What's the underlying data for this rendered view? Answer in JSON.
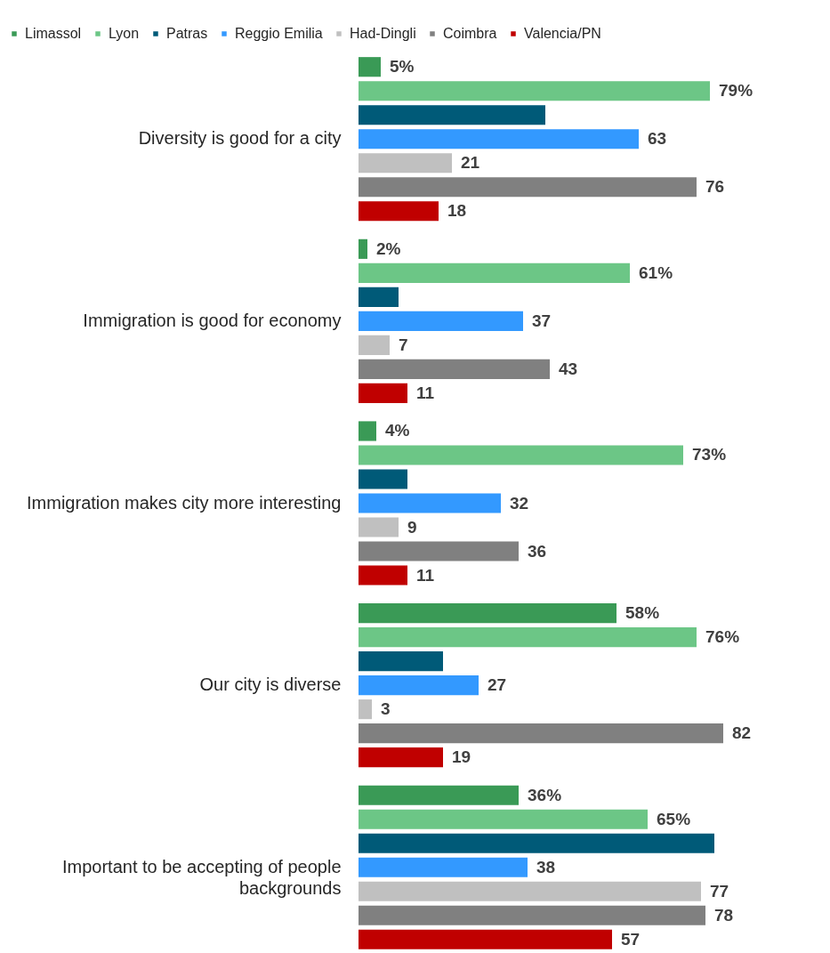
{
  "chart_data": {
    "type": "bar",
    "orientation": "horizontal",
    "legend": "top",
    "tick_labels": "y",
    "categories": [
      "Diversity is good for a city",
      "Immigration is good for economy",
      "Immigration makes city more interesting",
      "Our city is diverse",
      "Important to be accepting of people backgrounds"
    ],
    "series": [
      {
        "name": "Limassol",
        "color": "#3a9a56",
        "values": [
          5,
          2,
          4,
          58,
          36
        ],
        "value_labels": [
          "5%",
          "2%",
          "4%",
          "58%",
          "36%"
        ]
      },
      {
        "name": "Lyon",
        "color": "#6cc686",
        "values": [
          79,
          61,
          73,
          76,
          65
        ],
        "value_labels": [
          "79%",
          "61%",
          "73%",
          "76%",
          "65%"
        ]
      },
      {
        "name": "Patras",
        "color": "#005a78",
        "values": [
          42,
          9,
          11,
          19,
          80
        ],
        "value_labels": [
          null,
          null,
          null,
          null,
          null
        ]
      },
      {
        "name": "Reggio Emilia",
        "color": "#3399ff",
        "values": [
          63,
          37,
          32,
          27,
          38
        ],
        "value_labels": [
          "63",
          "37",
          "32",
          "27",
          "38"
        ]
      },
      {
        "name": "Had-Dingli",
        "color": "#c0c0c0",
        "values": [
          21,
          7,
          9,
          3,
          77
        ],
        "value_labels": [
          "21",
          "7",
          "9",
          "3",
          "77"
        ]
      },
      {
        "name": "Coimbra",
        "color": "#808080",
        "values": [
          76,
          43,
          36,
          82,
          78
        ],
        "value_labels": [
          "76",
          "43",
          "36",
          "82",
          "78"
        ]
      },
      {
        "name": "Valencia/PN",
        "color": "#c00000",
        "values": [
          18,
          11,
          11,
          19,
          57
        ],
        "value_labels": [
          "18",
          "11",
          "11",
          "19",
          "57"
        ]
      }
    ]
  }
}
